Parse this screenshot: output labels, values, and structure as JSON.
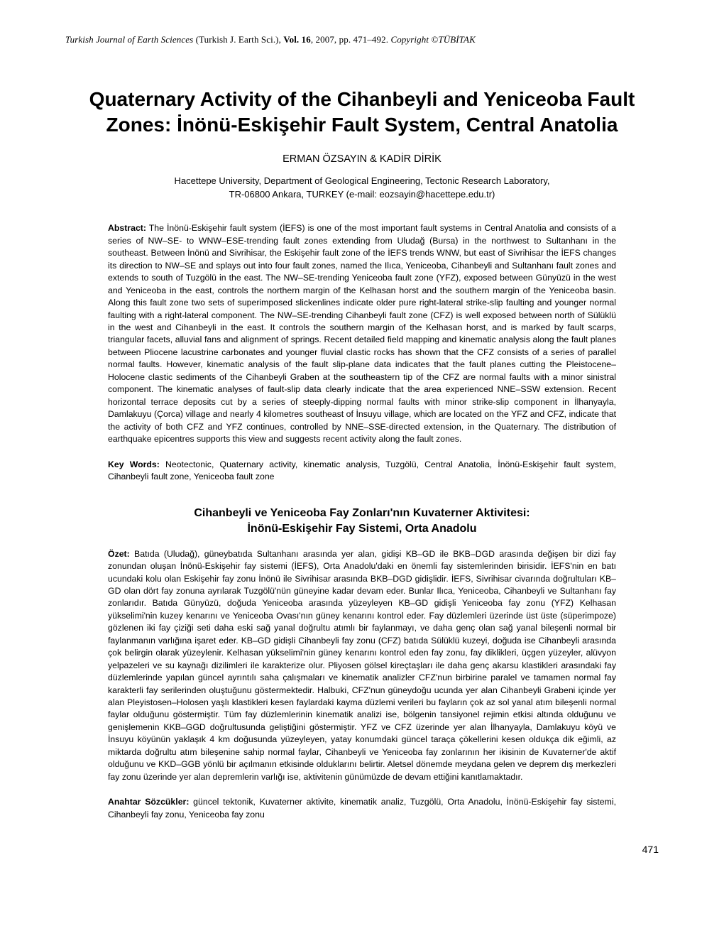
{
  "header": {
    "journal_italic": "Turkish Journal of Earth Sciences",
    "journal_paren": " (Turkish J. Earth Sci.), ",
    "vol_label": "Vol. 16",
    "rest": ", 2007, pp. 471–492. ",
    "copyright": "Copyright ©TÜBİTAK"
  },
  "title": {
    "line1": "Quaternary Activity of the Cihanbeyli and Yeniceoba Fault",
    "line2": "Zones: İnönü-Eskişehir Fault System, Central Anatolia"
  },
  "authors": "ERMAN ÖZSAYIN & KADİR DİRİK",
  "affiliation": {
    "line1": "Hacettepe University, Department of Geological Engineering, Tectonic Research Laboratory,",
    "line2": "TR-06800 Ankara, TURKEY (e-mail: eozsayin@hacettepe.edu.tr)"
  },
  "abstract_en": {
    "label": "Abstract:",
    "text": " The İnönü-Eskişehir fault system (İEFS) is one of the most important fault systems in Central Anatolia and consists of a series of NW–SE- to WNW–ESE-trending fault zones extending from Uludağ (Bursa) in the northwest to Sultanhanı in the southeast. Between İnönü and Sivrihisar, the Eskişehir fault zone of the İEFS trends WNW, but east of Sivrihisar the İEFS changes its direction to NW–SE and splays out into four fault zones, named the Ilıca, Yeniceoba, Cihanbeyli and Sultanhanı fault zones and extends to south of Tuzgölü in the east. The NW–SE-trending Yeniceoba fault zone (YFZ), exposed between Günyüzü in the west and Yeniceoba in the east, controls the northern margin of the Kelhasan horst and the southern margin of the Yeniceoba basin. Along this fault zone two sets of superimposed slickenlines indicate older pure right-lateral strike-slip faulting and younger normal faulting with a right-lateral component. The NW–SE-trending Cihanbeyli fault zone (CFZ) is well exposed between north of Sülüklü in the west and Cihanbeyli in the east. It controls the southern margin of the Kelhasan horst, and is marked by fault scarps, triangular facets, alluvial fans and alignment of springs. Recent detailed field mapping and kinematic analysis along the fault planes between Pliocene lacustrine carbonates and younger fluvial clastic rocks has shown that the CFZ consists of a series of parallel normal faults. However, kinematic analysis of the fault slip-plane data indicates that the fault planes cutting the Pleistocene–Holocene clastic sediments of the Cihanbeyli Graben at the southeastern tip of the CFZ are normal faults with a minor sinistral component. The kinematic analyses of fault-slip data clearly indicate that the area experienced NNE–SSW extension. Recent horizontal terrace deposits cut by a series of steeply-dipping normal faults with minor strike-slip component in İlhanyayla, Damlakuyu (Çorca) village and nearly 4 kilometres southeast of İnsuyu village, which are located on the YFZ and CFZ, indicate that the activity of both CFZ and YFZ continues, controlled by NNE–SSE-directed extension, in the Quaternary. The distribution of earthquake epicentres supports this view and suggests recent activity along the fault zones."
  },
  "keywords_en": {
    "label": "Key Words:",
    "text": " Neotectonic, Quaternary activity, kinematic analysis, Tuzgölü, Central Anatolia, İnönü-Eskişehir fault system, Cihanbeyli fault zone, Yeniceoba fault zone"
  },
  "subtitle_tr": {
    "line1": "Cihanbeyli ve Yeniceoba Fay Zonları'nın Kuvaterner Aktivitesi:",
    "line2": "İnönü-Eskişehir Fay Sistemi, Orta Anadolu"
  },
  "abstract_tr": {
    "label": "Özet:",
    "text": " Batıda (Uludağ), güneybatıda Sultanhanı arasında yer alan, gidişi KB–GD ile BKB–DGD arasında değişen bir dizi fay zonundan oluşan İnönü-Eskişehir fay sistemi (İEFS), Orta Anadolu'daki en önemli fay sistemlerinden birisidir. İEFS'nin en batı ucundaki kolu olan Eskişehir fay zonu İnönü ile Sivrihisar arasında BKB–DGD gidişlidir. İEFS, Sivrihisar civarında doğrultuları KB–GD olan dört fay zonuna ayrılarak Tuzgölü'nün güneyine kadar devam eder. Bunlar Ilıca, Yeniceoba, Cihanbeyli ve Sultanhanı fay zonlarıdır. Batıda Günyüzü, doğuda Yeniceoba arasında yüzeyleyen KB–GD gidişli Yeniceoba fay zonu (YFZ) Kelhasan yükselimi'nin kuzey kenarını ve Yeniceoba Ovası'nın güney kenarını kontrol eder. Fay düzlemleri üzerinde üst üste (süperimpoze) gözlenen iki fay çiziği seti daha eski sağ yanal doğrultu atımlı bir faylanmayı, ve daha genç olan sağ yanal bileşenli normal bir faylanmanın varlığına işaret eder. KB–GD gidişli Cihanbeyli fay zonu (CFZ) batıda Sülüklü kuzeyi, doğuda ise Cihanbeyli arasında çok belirgin olarak yüzeylenir. Kelhasan yükselimi'nin güney kenarını kontrol eden fay zonu, fay diklikleri, üçgen yüzeyler, alüvyon yelpazeleri ve su kaynağı dizilimleri ile karakterize olur. Pliyosen gölsel kireçtaşları ile daha genç akarsu klastikleri arasındaki fay düzlemlerinde yapılan güncel ayrıntılı saha çalışmaları ve kinematik analizler CFZ'nun birbirine paralel ve tamamen normal fay karakterli fay serilerinden oluştuğunu göstermektedir. Halbuki, CFZ'nun güneydoğu ucunda yer alan Cihanbeyli Grabeni içinde yer alan Pleyistosen–Holosen yaşlı klastikleri kesen faylardaki kayma düzlemi verileri bu fayların çok az sol yanal atım bileşenli normal faylar olduğunu göstermiştir. Tüm fay düzlemlerinin kinematik analizi ise, bölgenin tansiyonel rejimin etkisi altında olduğunu ve genişlemenin KKB–GGD doğrultusunda geliştiğini göstermiştir. YFZ ve CFZ üzerinde yer alan İlhanyayla, Damlakuyu köyü ve İnsuyu köyünün yaklaşık 4 km doğusunda yüzeyleyen, yatay konumdaki güncel taraça çökellerini kesen oldukça dik eğimli, az miktarda doğrultu atım bileşenine sahip normal faylar, Cihanbeyli ve Yeniceoba fay zonlarının her ikisinin de Kuvaterner'de aktif olduğunu ve KKD–GGB yönlü bir açılmanın etkisinde olduklarını belirtir. Aletsel dönemde meydana gelen ve deprem dış merkezleri fay zonu üzerinde yer alan depremlerin varlığı ise, aktivitenin günümüzde de devam ettiğini kanıtlamaktadır."
  },
  "keywords_tr": {
    "label": "Anahtar Sözcükler:",
    "text": " güncel tektonik, Kuvaterner aktivite, kinematik analiz, Tuzgölü, Orta Anadolu, İnönü-Eskişehir fay sistemi, Cihanbeyli fay zonu, Yeniceoba fay zonu"
  },
  "page_number": "471"
}
